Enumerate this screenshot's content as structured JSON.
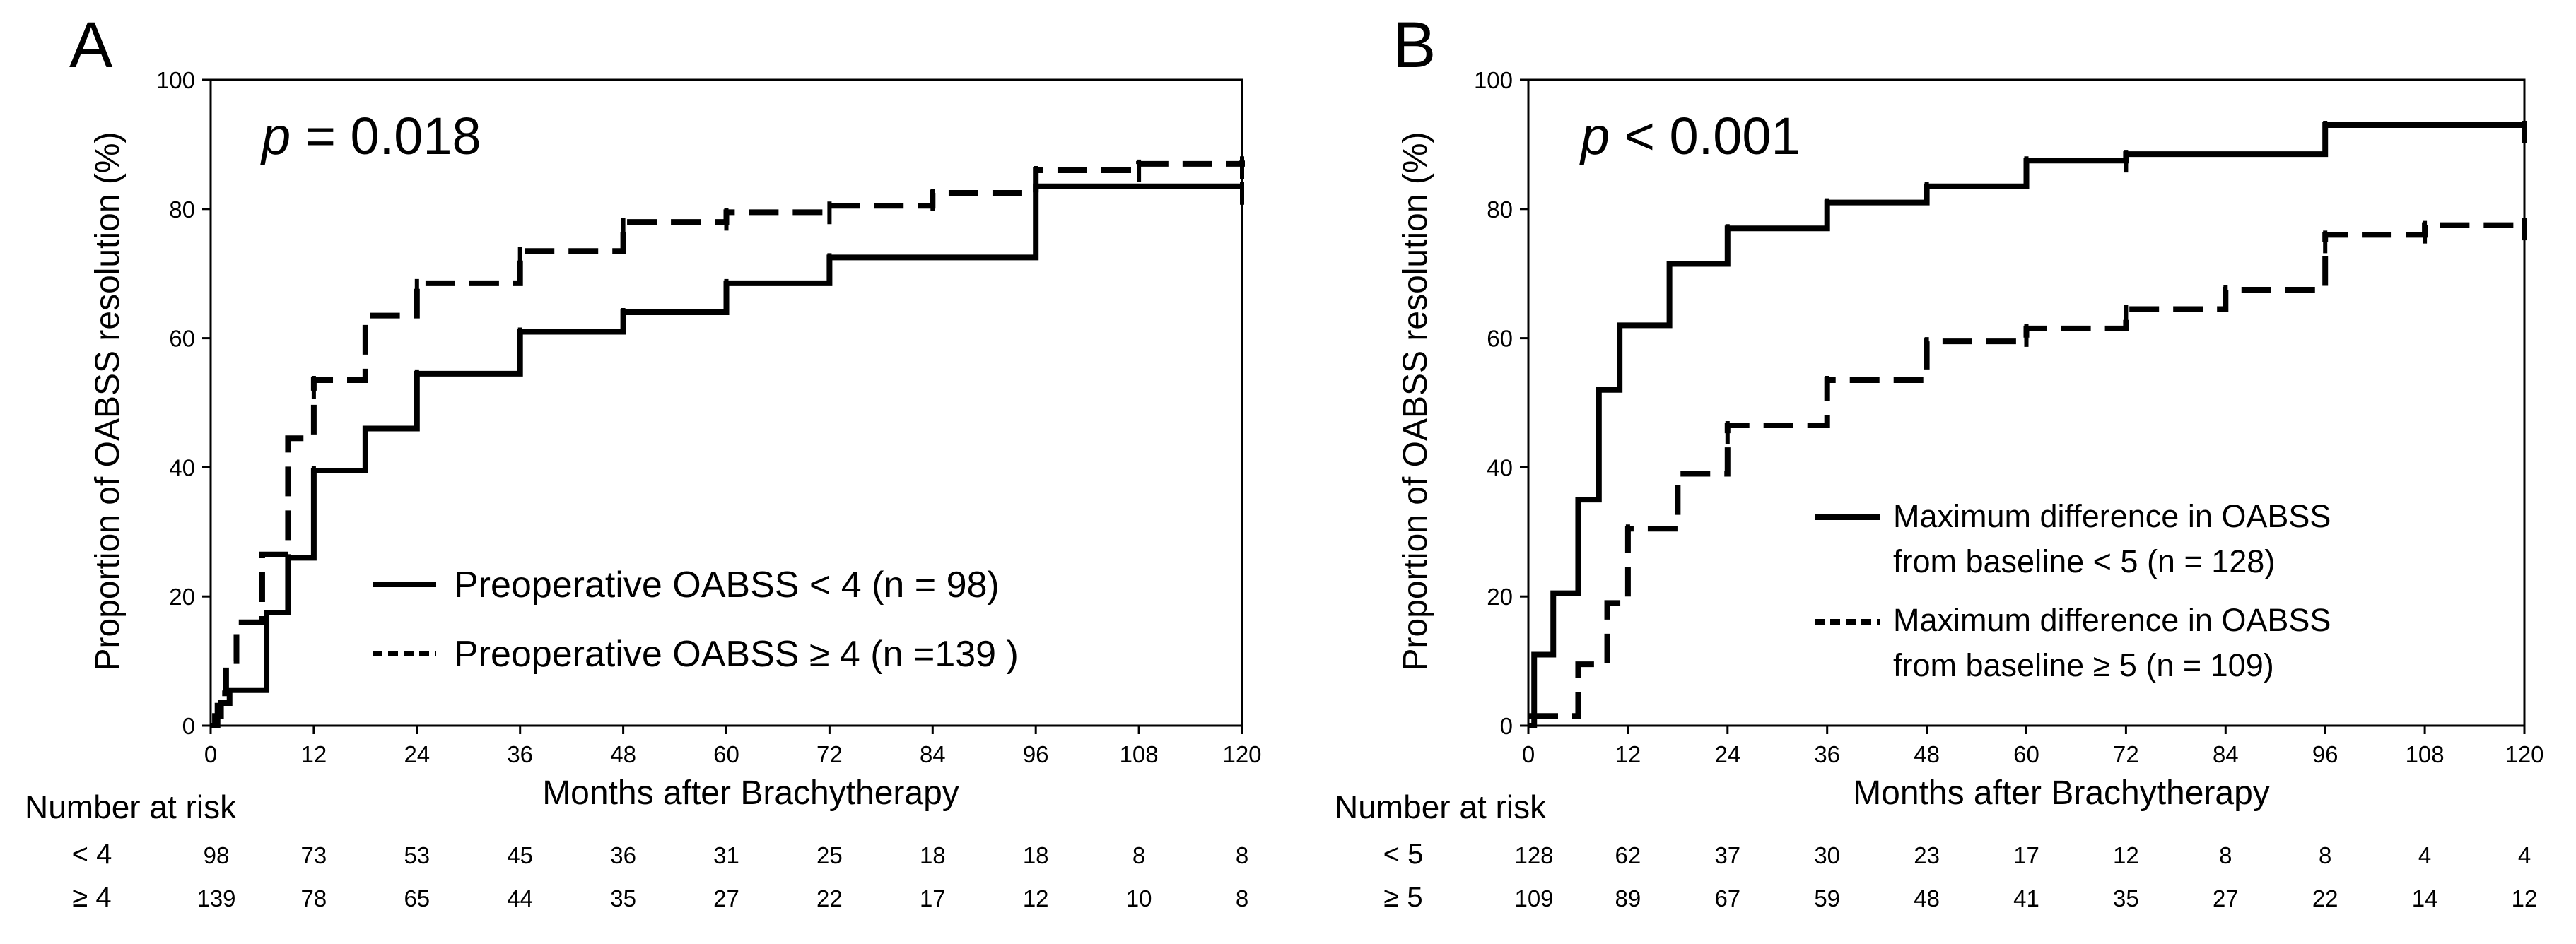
{
  "chart_data": [
    {
      "panel": "A",
      "type": "line",
      "style": "kaplan-meier step curves",
      "xlabel": "Months after Brachytherapy",
      "ylabel": "Proportion of OABSS resolution (%)",
      "xlim": [
        0,
        120
      ],
      "ylim": [
        0,
        100
      ],
      "xticks": [
        0,
        12,
        24,
        36,
        48,
        60,
        72,
        84,
        96,
        108,
        120
      ],
      "yticks": [
        0,
        20,
        40,
        60,
        80,
        100
      ],
      "annotation": {
        "label": "p",
        "rest": " = 0.018"
      },
      "legend_position": "lower-right",
      "series": [
        {
          "name": "Preoperative OABSS < 4 (n = 98)",
          "line": "solid",
          "x": [
            0,
            0.5,
            1.2,
            2.2,
            3.5,
            6.5,
            9.0,
            12.0,
            18.0,
            24.0,
            36.0,
            48.0,
            60.0,
            72.0,
            96.0,
            120.0
          ],
          "y": [
            0,
            1.5,
            3.5,
            5.5,
            5.5,
            17.5,
            26.0,
            39.5,
            46.0,
            54.5,
            61.0,
            64.0,
            68.5,
            72.5,
            83.5,
            83.5
          ]
        },
        {
          "name": "Preoperative OABSS ≥ 4 (n =139 )",
          "line": "dashed",
          "x": [
            0,
            0.8,
            1.8,
            3.0,
            6.0,
            9.0,
            12.0,
            18.0,
            24.0,
            36.0,
            48.0,
            60.0,
            72.0,
            84.0,
            96.0,
            108.0,
            120.0
          ],
          "y": [
            0,
            5.0,
            10.0,
            16.0,
            26.5,
            44.5,
            53.5,
            63.5,
            68.5,
            73.5,
            78.0,
            79.5,
            80.5,
            82.5,
            86.0,
            87.0,
            87.5
          ]
        }
      ],
      "risk_table": {
        "title": "Number at risk",
        "times": [
          0,
          12,
          24,
          36,
          48,
          60,
          72,
          84,
          96,
          108,
          120
        ],
        "rows": [
          {
            "label": "< 4",
            "values": [
              "98",
              "73",
              "53",
              "45",
              "36",
              "31",
              "25",
              "18",
              "18",
              "8",
              "8"
            ]
          },
          {
            "label": "≥ 4",
            "values": [
              "139",
              "78",
              "65",
              "44",
              "35",
              "27",
              "22",
              "17",
              "12",
              "10",
              "8"
            ]
          }
        ]
      }
    },
    {
      "panel": "B",
      "type": "line",
      "style": "kaplan-meier step curves",
      "xlabel": "Months after Brachytherapy",
      "ylabel": "Proportion of OABSS resolution (%)",
      "xlim": [
        0,
        120
      ],
      "ylim": [
        0,
        100
      ],
      "xticks": [
        0,
        12,
        24,
        36,
        48,
        60,
        72,
        84,
        96,
        108,
        120
      ],
      "yticks": [
        0,
        20,
        40,
        60,
        80,
        100
      ],
      "annotation": {
        "label": "p",
        "rest": " < 0.001"
      },
      "legend_position": "lower-right",
      "series": [
        {
          "name": "Maximum difference in OABSS from baseline < 5 (n = 128)",
          "name_lines": [
            "Maximum difference in OABSS",
            "from baseline < 5 (n = 128)"
          ],
          "line": "solid",
          "x": [
            0,
            0.7,
            3.0,
            6.0,
            8.5,
            11.0,
            17.0,
            24.0,
            36.0,
            48.0,
            60.0,
            72.0,
            96.0,
            120.0
          ],
          "y": [
            0,
            11.0,
            20.5,
            35.0,
            52.0,
            62.0,
            71.5,
            77.0,
            81.0,
            83.5,
            87.5,
            88.5,
            93.0,
            93.0
          ]
        },
        {
          "name": "Maximum difference in OABSS from baseline ≥ 5 (n = 109)",
          "name_lines": [
            "Maximum difference in OABSS",
            "from baseline ≥ 5 (n = 109)"
          ],
          "line": "dashed",
          "x": [
            0,
            6.0,
            9.5,
            12.0,
            18.0,
            24.0,
            36.0,
            48.0,
            60.0,
            72.0,
            84.0,
            96.0,
            108.0,
            120.0
          ],
          "y": [
            1.5,
            9.5,
            19.0,
            30.5,
            39.0,
            46.5,
            53.5,
            59.5,
            61.5,
            64.5,
            67.5,
            76.0,
            77.5,
            78.0
          ]
        }
      ],
      "risk_table": {
        "title": "Number at risk",
        "times": [
          0,
          12,
          24,
          36,
          48,
          60,
          72,
          84,
          96,
          108,
          120
        ],
        "rows": [
          {
            "label": "< 5",
            "values": [
              "128",
              "62",
              "37",
              "30",
              "23",
              "17",
              "12",
              "8",
              "8",
              "4",
              "4"
            ]
          },
          {
            "label": "≥ 5",
            "values": [
              "109",
              "89",
              "67",
              "59",
              "48",
              "41",
              "35",
              "27",
              "22",
              "14",
              "12"
            ]
          }
        ]
      }
    }
  ]
}
